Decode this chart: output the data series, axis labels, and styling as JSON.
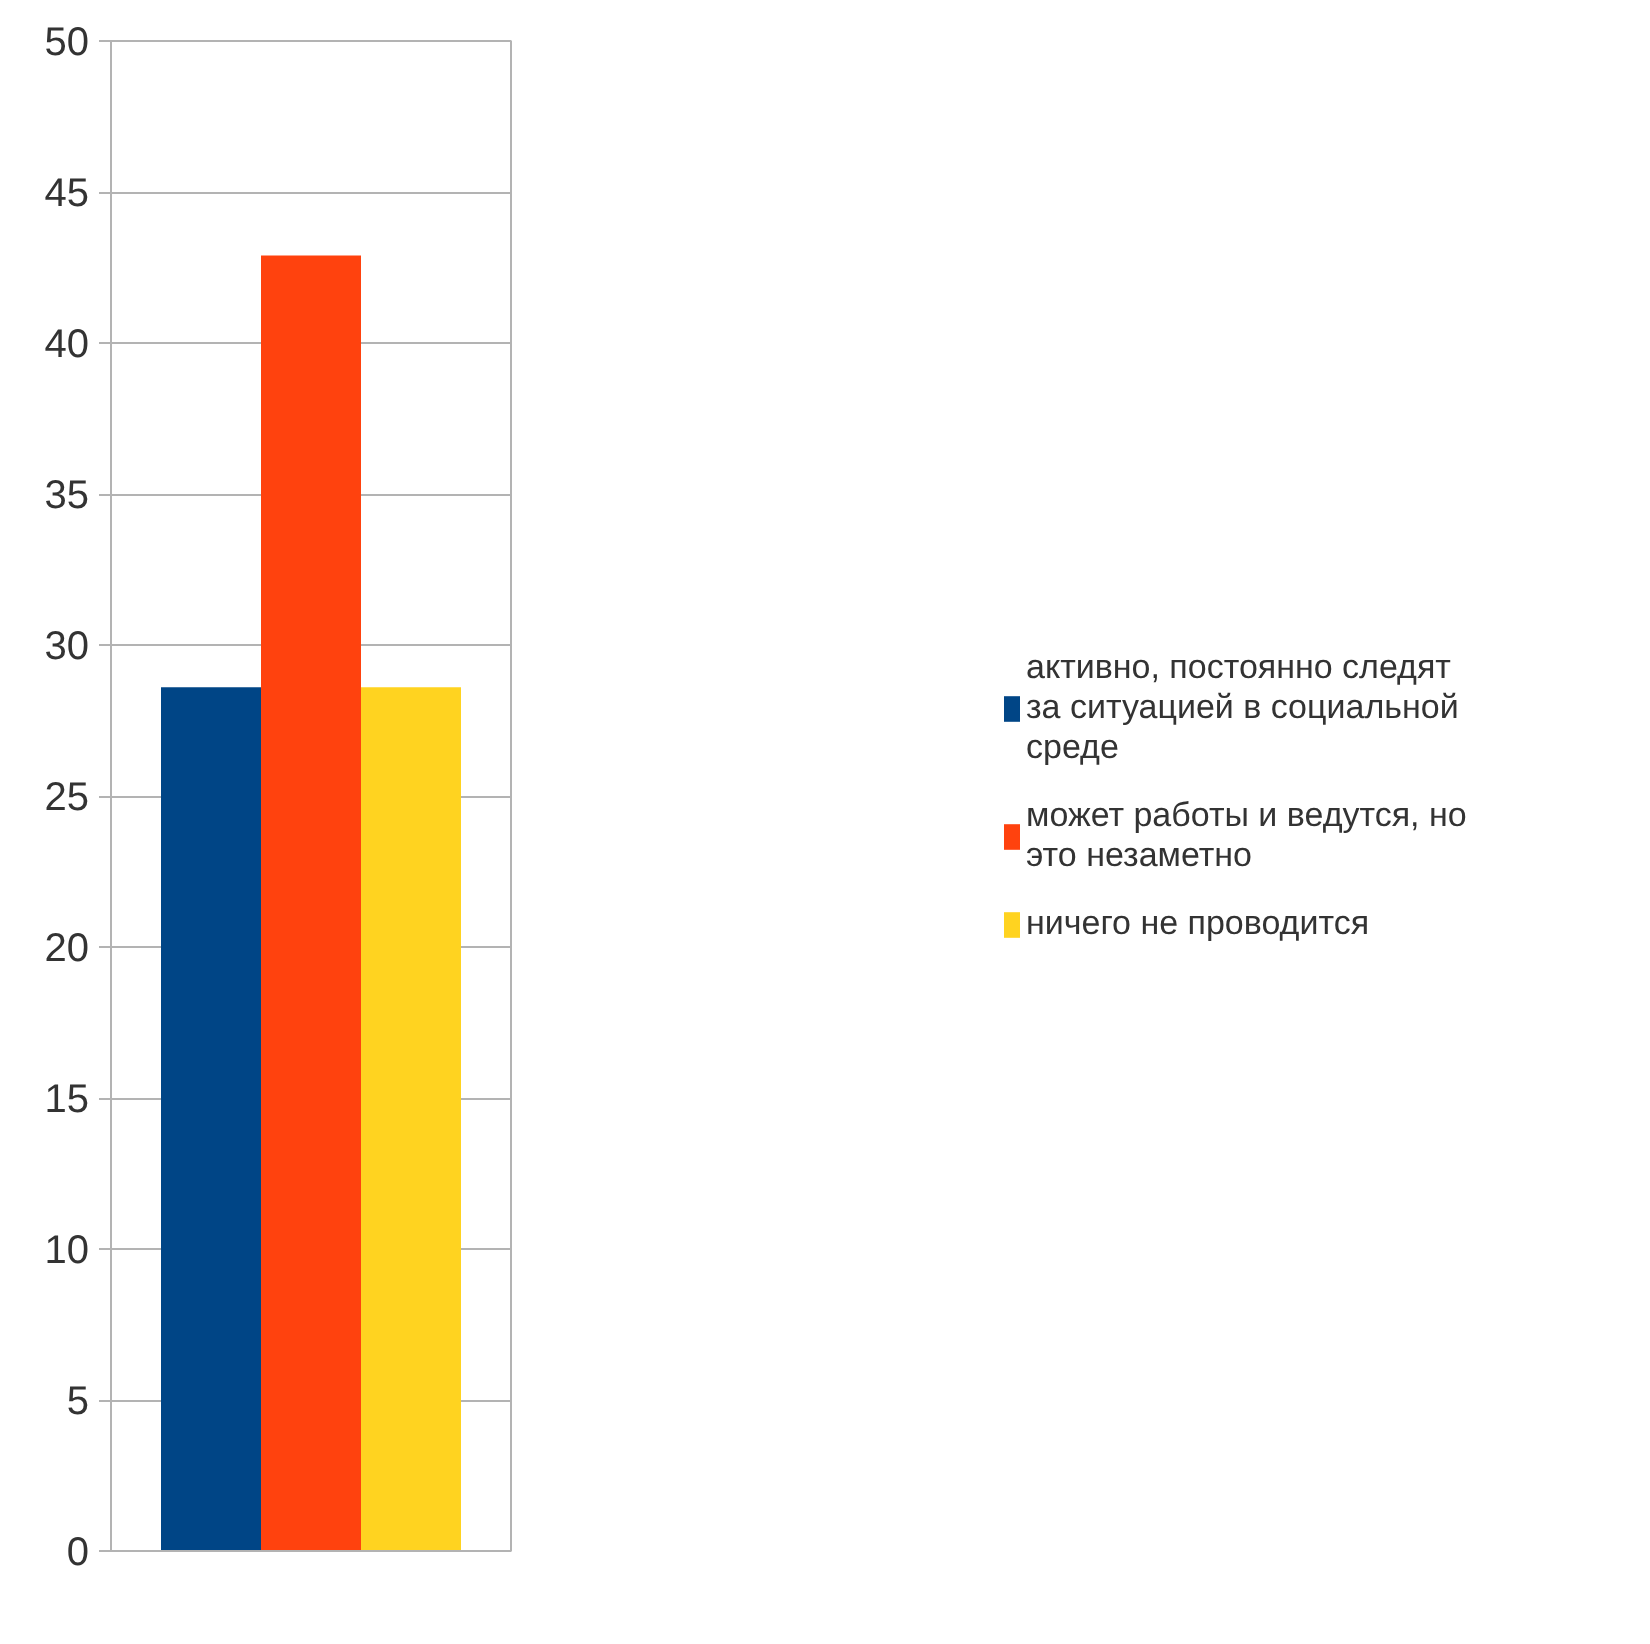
{
  "chart_data": {
    "type": "bar",
    "categories": [
      null
    ],
    "series": [
      {
        "name": "активно, постоянно следят за ситуацией в социальной среде",
        "color": "#004586",
        "values": [
          28.6
        ]
      },
      {
        "name": "может работы и ведутся, но это незаметно",
        "color": "#ff420e",
        "values": [
          42.9
        ]
      },
      {
        "name": "ничего не проводится",
        "color": "#ffd320",
        "values": [
          28.6
        ]
      }
    ],
    "ylim": [
      0,
      50
    ],
    "yticks": [
      0,
      5,
      10,
      15,
      20,
      25,
      30,
      35,
      40,
      45,
      50
    ],
    "grid": "y",
    "legend": "right"
  }
}
